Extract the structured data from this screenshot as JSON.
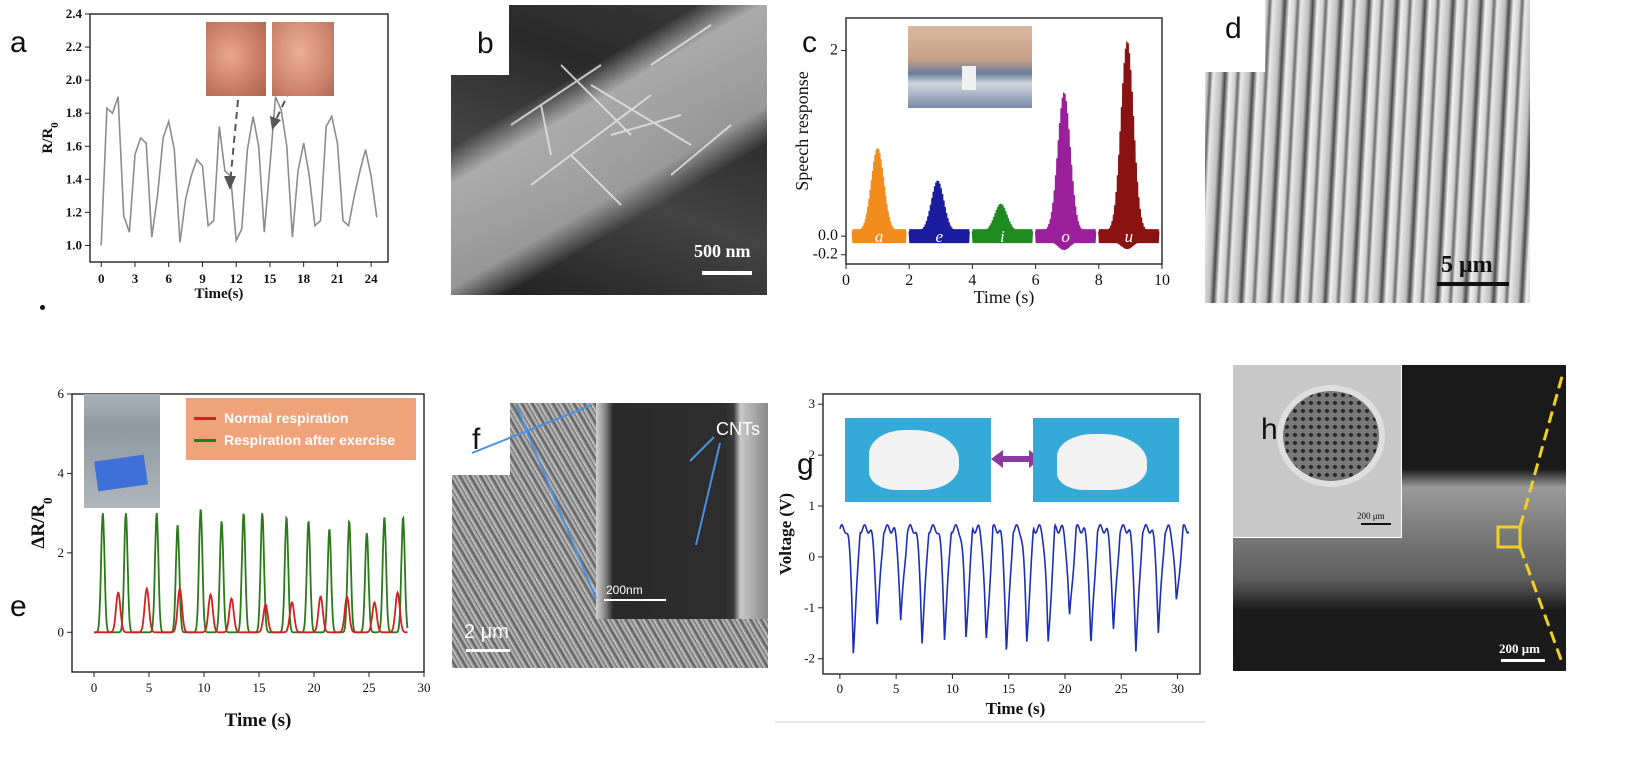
{
  "panels": {
    "a": {
      "label": "a"
    },
    "b": {
      "label": "b",
      "scale_bar": "500 nm"
    },
    "c": {
      "label": "c"
    },
    "d": {
      "label": "d",
      "scale_bar": "5 μm"
    },
    "e": {
      "label": "e"
    },
    "f": {
      "label": "f",
      "scale_bar": "2 μm",
      "inset_scale_bar": "200nm",
      "annotation": "CNTs"
    },
    "g": {
      "label": "g"
    },
    "h": {
      "label": "h",
      "scale_bar": "200 μm",
      "inset_scale_bar": "200 μm"
    }
  },
  "chart_data": [
    {
      "panel": "a",
      "type": "line",
      "xlabel": "Time(s)",
      "ylabel": "R/R0",
      "xlim": [
        -1,
        25.5
      ],
      "ylim": [
        0.9,
        2.4
      ],
      "xticks": [
        0,
        3,
        6,
        9,
        12,
        15,
        18,
        21,
        24
      ],
      "yticks": [
        1.0,
        1.2,
        1.4,
        1.6,
        1.8,
        2.0,
        2.2,
        2.4
      ],
      "series": [
        {
          "color": "#8c8c8c",
          "x": [
            0,
            0.5,
            1,
            1.5,
            2,
            2.5,
            3,
            3.5,
            4,
            4.5,
            5,
            5.5,
            6,
            6.5,
            7,
            7.5,
            8,
            8.5,
            9,
            9.5,
            10,
            10.5,
            11,
            11.5,
            12,
            12.5,
            13,
            13.5,
            14,
            14.5,
            15,
            15.5,
            16,
            16.5,
            17,
            17.5,
            18,
            18.5,
            19,
            19.5,
            20,
            20.5,
            21,
            21.5,
            22,
            22.5,
            23,
            23.5,
            24,
            24.5
          ],
          "y": [
            1.0,
            1.83,
            1.8,
            1.9,
            1.18,
            1.08,
            1.55,
            1.65,
            1.62,
            1.05,
            1.3,
            1.65,
            1.75,
            1.58,
            1.02,
            1.28,
            1.42,
            1.52,
            1.48,
            1.12,
            1.15,
            1.72,
            1.45,
            1.42,
            1.03,
            1.1,
            1.58,
            1.78,
            1.6,
            1.08,
            1.48,
            1.9,
            1.82,
            1.6,
            1.05,
            1.45,
            1.62,
            1.42,
            1.12,
            1.15,
            1.72,
            1.78,
            1.62,
            1.15,
            1.12,
            1.3,
            1.45,
            1.58,
            1.42,
            1.17
          ]
        }
      ]
    },
    {
      "panel": "c",
      "type": "line",
      "xlabel": "Time (s)",
      "ylabel": "Speech response",
      "xlim": [
        0,
        10
      ],
      "ylim": [
        -0.3,
        2.35
      ],
      "xticks": [
        0,
        2,
        4,
        6,
        8,
        10
      ],
      "yticks": [
        -0.2,
        0.0,
        2
      ],
      "segments": [
        {
          "vowel": "a",
          "color": "#f28c1c",
          "x": [
            0.2,
            1.9
          ],
          "amp_pos": 0.95,
          "amp_neg": -0.06
        },
        {
          "vowel": "e",
          "color": "#1c1c9e",
          "x": [
            2.0,
            3.9
          ],
          "amp_pos": 0.6,
          "amp_neg": -0.05
        },
        {
          "vowel": "i",
          "color": "#1f8a1f",
          "x": [
            4.0,
            5.9
          ],
          "amp_pos": 0.35,
          "amp_neg": -0.05
        },
        {
          "vowel": "o",
          "color": "#9a1f9a",
          "x": [
            6.0,
            7.9
          ],
          "amp_pos": 1.55,
          "amp_neg": -0.15
        },
        {
          "vowel": "u",
          "color": "#8b1212",
          "x": [
            8.0,
            9.9
          ],
          "amp_pos": 2.1,
          "amp_neg": -0.14
        }
      ]
    },
    {
      "panel": "e",
      "type": "line",
      "xlabel": "Time (s)",
      "ylabel": "ΔR/R0",
      "xlim": [
        -2,
        30
      ],
      "ylim": [
        -1,
        6
      ],
      "xticks": [
        0,
        5,
        10,
        15,
        20,
        25,
        30
      ],
      "yticks": [
        0,
        2,
        4,
        6
      ],
      "legend_position": "top-right",
      "series": [
        {
          "name": "Normal respiration",
          "color": "#d42020",
          "peaks": [
            2.2,
            4.8,
            7.8,
            10.6,
            12.5,
            15.6,
            18.0,
            20.6,
            23.0,
            25.5,
            27.6
          ],
          "heights": [
            1.0,
            1.1,
            1.1,
            0.95,
            0.85,
            0.7,
            0.75,
            0.9,
            0.9,
            0.75,
            1.0
          ]
        },
        {
          "name": "Respiration after exercise",
          "color": "#2a7a1a",
          "peaks": [
            0.8,
            2.9,
            5.7,
            7.6,
            9.7,
            11.6,
            13.6,
            15.3,
            17.5,
            19.5,
            21.4,
            23.2,
            24.8,
            26.4,
            28.1
          ],
          "heights": [
            3.0,
            3.0,
            3.0,
            2.7,
            3.1,
            2.8,
            3.0,
            3.0,
            2.9,
            2.8,
            2.6,
            2.8,
            2.5,
            2.9,
            2.9
          ]
        }
      ]
    },
    {
      "panel": "g",
      "type": "line",
      "xlabel": "Time (s)",
      "ylabel": "Voltage (V)",
      "xlim": [
        -1.5,
        32
      ],
      "ylim": [
        -2.3,
        3.2
      ],
      "xticks": [
        0,
        5,
        10,
        15,
        20,
        25,
        30
      ],
      "yticks": [
        -2,
        -1,
        0,
        1,
        2,
        3
      ],
      "series": [
        {
          "color": "#1c2fb8",
          "valleys": [
            1.2,
            3.3,
            5.4,
            7.3,
            9.3,
            11.2,
            13.0,
            14.8,
            16.6,
            18.5,
            20.4,
            22.3,
            24.3,
            26.3,
            28.3,
            29.9
          ],
          "depths": [
            -1.9,
            -1.4,
            -1.3,
            -1.7,
            -1.6,
            -1.6,
            -1.8,
            -1.9,
            -1.7,
            -1.8,
            -1.3,
            -1.8,
            -1.5,
            -1.9,
            -1.5,
            -1.0
          ]
        }
      ]
    }
  ]
}
